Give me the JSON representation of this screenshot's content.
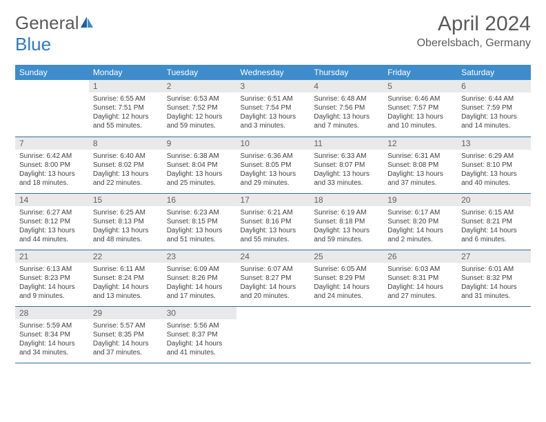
{
  "logo": {
    "word1": "General",
    "word2": "Blue"
  },
  "title": "April 2024",
  "location": "Oberelsbach, Germany",
  "colors": {
    "header_bg": "#3e8ccc",
    "header_text": "#ffffff",
    "daynum_bg": "#e9e9e9",
    "daynum_text": "#606060",
    "row_border": "#2f6aa0",
    "body_text": "#404040",
    "logo_gray": "#5a5a5a",
    "logo_blue": "#2f7ac0"
  },
  "day_headers": [
    "Sunday",
    "Monday",
    "Tuesday",
    "Wednesday",
    "Thursday",
    "Friday",
    "Saturday"
  ],
  "weeks": [
    [
      {
        "num": "",
        "lines": []
      },
      {
        "num": "1",
        "lines": [
          "Sunrise: 6:55 AM",
          "Sunset: 7:51 PM",
          "Daylight: 12 hours",
          "and 55 minutes."
        ]
      },
      {
        "num": "2",
        "lines": [
          "Sunrise: 6:53 AM",
          "Sunset: 7:52 PM",
          "Daylight: 12 hours",
          "and 59 minutes."
        ]
      },
      {
        "num": "3",
        "lines": [
          "Sunrise: 6:51 AM",
          "Sunset: 7:54 PM",
          "Daylight: 13 hours",
          "and 3 minutes."
        ]
      },
      {
        "num": "4",
        "lines": [
          "Sunrise: 6:48 AM",
          "Sunset: 7:56 PM",
          "Daylight: 13 hours",
          "and 7 minutes."
        ]
      },
      {
        "num": "5",
        "lines": [
          "Sunrise: 6:46 AM",
          "Sunset: 7:57 PM",
          "Daylight: 13 hours",
          "and 10 minutes."
        ]
      },
      {
        "num": "6",
        "lines": [
          "Sunrise: 6:44 AM",
          "Sunset: 7:59 PM",
          "Daylight: 13 hours",
          "and 14 minutes."
        ]
      }
    ],
    [
      {
        "num": "7",
        "lines": [
          "Sunrise: 6:42 AM",
          "Sunset: 8:00 PM",
          "Daylight: 13 hours",
          "and 18 minutes."
        ]
      },
      {
        "num": "8",
        "lines": [
          "Sunrise: 6:40 AM",
          "Sunset: 8:02 PM",
          "Daylight: 13 hours",
          "and 22 minutes."
        ]
      },
      {
        "num": "9",
        "lines": [
          "Sunrise: 6:38 AM",
          "Sunset: 8:04 PM",
          "Daylight: 13 hours",
          "and 25 minutes."
        ]
      },
      {
        "num": "10",
        "lines": [
          "Sunrise: 6:36 AM",
          "Sunset: 8:05 PM",
          "Daylight: 13 hours",
          "and 29 minutes."
        ]
      },
      {
        "num": "11",
        "lines": [
          "Sunrise: 6:33 AM",
          "Sunset: 8:07 PM",
          "Daylight: 13 hours",
          "and 33 minutes."
        ]
      },
      {
        "num": "12",
        "lines": [
          "Sunrise: 6:31 AM",
          "Sunset: 8:08 PM",
          "Daylight: 13 hours",
          "and 37 minutes."
        ]
      },
      {
        "num": "13",
        "lines": [
          "Sunrise: 6:29 AM",
          "Sunset: 8:10 PM",
          "Daylight: 13 hours",
          "and 40 minutes."
        ]
      }
    ],
    [
      {
        "num": "14",
        "lines": [
          "Sunrise: 6:27 AM",
          "Sunset: 8:12 PM",
          "Daylight: 13 hours",
          "and 44 minutes."
        ]
      },
      {
        "num": "15",
        "lines": [
          "Sunrise: 6:25 AM",
          "Sunset: 8:13 PM",
          "Daylight: 13 hours",
          "and 48 minutes."
        ]
      },
      {
        "num": "16",
        "lines": [
          "Sunrise: 6:23 AM",
          "Sunset: 8:15 PM",
          "Daylight: 13 hours",
          "and 51 minutes."
        ]
      },
      {
        "num": "17",
        "lines": [
          "Sunrise: 6:21 AM",
          "Sunset: 8:16 PM",
          "Daylight: 13 hours",
          "and 55 minutes."
        ]
      },
      {
        "num": "18",
        "lines": [
          "Sunrise: 6:19 AM",
          "Sunset: 8:18 PM",
          "Daylight: 13 hours",
          "and 59 minutes."
        ]
      },
      {
        "num": "19",
        "lines": [
          "Sunrise: 6:17 AM",
          "Sunset: 8:20 PM",
          "Daylight: 14 hours",
          "and 2 minutes."
        ]
      },
      {
        "num": "20",
        "lines": [
          "Sunrise: 6:15 AM",
          "Sunset: 8:21 PM",
          "Daylight: 14 hours",
          "and 6 minutes."
        ]
      }
    ],
    [
      {
        "num": "21",
        "lines": [
          "Sunrise: 6:13 AM",
          "Sunset: 8:23 PM",
          "Daylight: 14 hours",
          "and 9 minutes."
        ]
      },
      {
        "num": "22",
        "lines": [
          "Sunrise: 6:11 AM",
          "Sunset: 8:24 PM",
          "Daylight: 14 hours",
          "and 13 minutes."
        ]
      },
      {
        "num": "23",
        "lines": [
          "Sunrise: 6:09 AM",
          "Sunset: 8:26 PM",
          "Daylight: 14 hours",
          "and 17 minutes."
        ]
      },
      {
        "num": "24",
        "lines": [
          "Sunrise: 6:07 AM",
          "Sunset: 8:27 PM",
          "Daylight: 14 hours",
          "and 20 minutes."
        ]
      },
      {
        "num": "25",
        "lines": [
          "Sunrise: 6:05 AM",
          "Sunset: 8:29 PM",
          "Daylight: 14 hours",
          "and 24 minutes."
        ]
      },
      {
        "num": "26",
        "lines": [
          "Sunrise: 6:03 AM",
          "Sunset: 8:31 PM",
          "Daylight: 14 hours",
          "and 27 minutes."
        ]
      },
      {
        "num": "27",
        "lines": [
          "Sunrise: 6:01 AM",
          "Sunset: 8:32 PM",
          "Daylight: 14 hours",
          "and 31 minutes."
        ]
      }
    ],
    [
      {
        "num": "28",
        "lines": [
          "Sunrise: 5:59 AM",
          "Sunset: 8:34 PM",
          "Daylight: 14 hours",
          "and 34 minutes."
        ]
      },
      {
        "num": "29",
        "lines": [
          "Sunrise: 5:57 AM",
          "Sunset: 8:35 PM",
          "Daylight: 14 hours",
          "and 37 minutes."
        ]
      },
      {
        "num": "30",
        "lines": [
          "Sunrise: 5:56 AM",
          "Sunset: 8:37 PM",
          "Daylight: 14 hours",
          "and 41 minutes."
        ]
      },
      {
        "num": "",
        "lines": []
      },
      {
        "num": "",
        "lines": []
      },
      {
        "num": "",
        "lines": []
      },
      {
        "num": "",
        "lines": []
      }
    ]
  ]
}
